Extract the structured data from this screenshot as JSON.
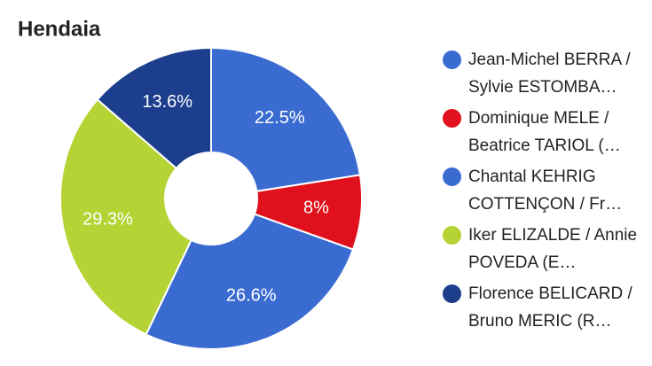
{
  "chart_data": {
    "type": "donut",
    "title": "Hendaia",
    "series": [
      {
        "name": "Jean-Michel BERRA / Sylvie ESTOMBA…",
        "color": "#3a6bd0"
      },
      {
        "name": "Dominique MELE / Beatrice TARIOL (…",
        "color": "#e0101c"
      },
      {
        "name": "Chantal KEHRIG COTTENÇON / Fr…",
        "color": "#3a6bd0"
      },
      {
        "name": "Iker ELIZALDE / Annie POVEDA (E…",
        "color": "#b5d334"
      },
      {
        "name": "Florence BELICARD / Bruno MERIC (R…",
        "color": "#1c3e8c"
      }
    ],
    "values": [
      22.5,
      8,
      26.6,
      29.3,
      13.6
    ],
    "value_labels": [
      "22.5%",
      "8%",
      "26.6%",
      "29.3%",
      "13.6%"
    ],
    "legend": "right"
  }
}
